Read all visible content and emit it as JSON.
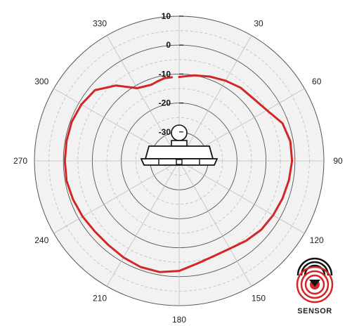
{
  "chart_data": {
    "type": "polar-line",
    "title": "",
    "angle_ticks": [
      0,
      30,
      60,
      90,
      120,
      150,
      180,
      210,
      240,
      270,
      300,
      330
    ],
    "angle_labels": [
      "",
      "30",
      "60",
      "90",
      "120",
      "150",
      "180",
      "210",
      "240",
      "270",
      "300",
      "330"
    ],
    "radial_ticks": [
      10,
      0,
      -10,
      -20,
      -30
    ],
    "radial_labels": [
      "10",
      "0",
      "-10",
      "-20",
      "-30"
    ],
    "radial_range": [
      -40,
      10
    ],
    "grid": true,
    "series": [
      {
        "color": "#d32626",
        "angles": [
          0,
          10,
          20,
          30,
          40,
          50,
          60,
          70,
          80,
          90,
          100,
          110,
          120,
          130,
          140,
          150,
          160,
          170,
          180,
          190,
          200,
          210,
          220,
          230,
          240,
          250,
          260,
          270,
          280,
          290,
          300,
          310,
          320,
          330,
          340,
          345,
          350,
          355
        ],
        "values": [
          -11,
          -10,
          -9,
          -8,
          -7,
          -6.5,
          -5,
          -2,
          -1,
          -1,
          -1.5,
          -2,
          -2.5,
          -3,
          -4,
          -5,
          -5,
          -4,
          -2,
          -1,
          -1,
          -1.5,
          -2,
          -2,
          -1.5,
          -1,
          -0.5,
          -0.5,
          -0.5,
          -0.5,
          -1,
          -2,
          -6,
          -11,
          -12,
          -11.5,
          -11,
          -11
        ]
      }
    ]
  },
  "logo": {
    "text": "SENSOR",
    "color": "#d32626"
  }
}
